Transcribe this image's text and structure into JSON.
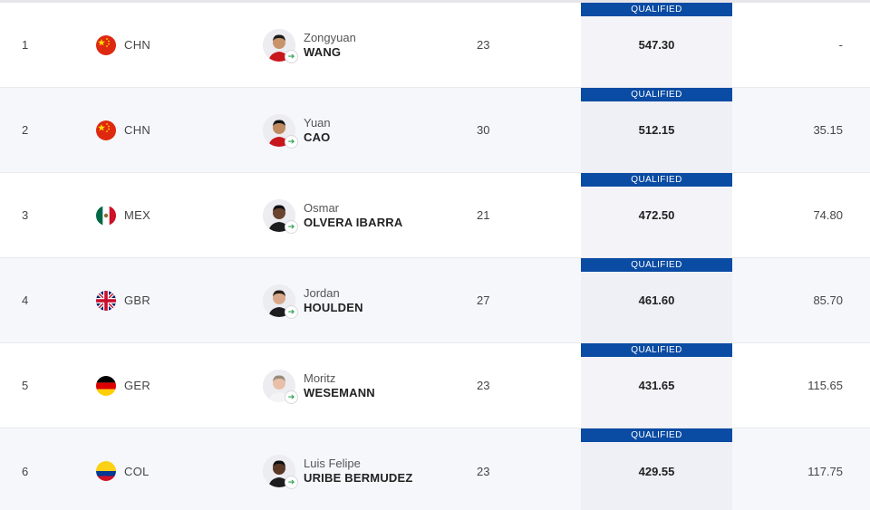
{
  "colors": {
    "qualified_bg": "#0a4ba3",
    "row_alt_bg": "#f6f7fb",
    "divider": "#e9e9ee"
  },
  "rows": [
    {
      "rank": "1",
      "noc": "CHN",
      "flag": "china-flag-icon",
      "given": "Zongyuan",
      "family": "WANG",
      "age": "23",
      "status": "QUALIFIED",
      "score": "547.30",
      "behind": "-"
    },
    {
      "rank": "2",
      "noc": "CHN",
      "flag": "china-flag-icon",
      "given": "Yuan",
      "family": "CAO",
      "age": "30",
      "status": "QUALIFIED",
      "score": "512.15",
      "behind": "35.15"
    },
    {
      "rank": "3",
      "noc": "MEX",
      "flag": "mexico-flag-icon",
      "given": "Osmar",
      "family": "OLVERA IBARRA",
      "age": "21",
      "status": "QUALIFIED",
      "score": "472.50",
      "behind": "74.80"
    },
    {
      "rank": "4",
      "noc": "GBR",
      "flag": "uk-flag-icon",
      "given": "Jordan",
      "family": "HOULDEN",
      "age": "27",
      "status": "QUALIFIED",
      "score": "461.60",
      "behind": "85.70"
    },
    {
      "rank": "5",
      "noc": "GER",
      "flag": "germany-flag-icon",
      "given": "Moritz",
      "family": "WESEMANN",
      "age": "23",
      "status": "QUALIFIED",
      "score": "431.65",
      "behind": "115.65"
    },
    {
      "rank": "6",
      "noc": "COL",
      "flag": "colombia-flag-icon",
      "given": "Luis Felipe",
      "family": "URIBE BERMUDEZ",
      "age": "23",
      "status": "QUALIFIED",
      "score": "429.55",
      "behind": "117.75"
    }
  ]
}
